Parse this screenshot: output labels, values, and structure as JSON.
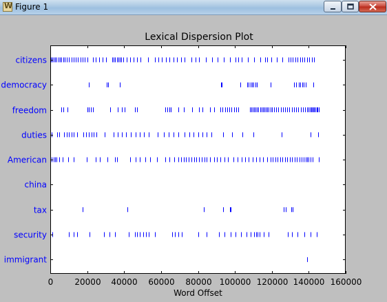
{
  "window": {
    "title": "Figure 1"
  },
  "chart_data": {
    "type": "scatter",
    "title": "Lexical Dispersion Plot",
    "xlabel": "Word Offset",
    "ylabel": "",
    "xlim": [
      0,
      160000
    ],
    "xticks": [
      "0",
      "20000",
      "40000",
      "60000",
      "80000",
      "100000",
      "120000",
      "140000",
      "160000"
    ],
    "categories": [
      "citizens",
      "democracy",
      "freedom",
      "duties",
      "American",
      "china",
      "tax",
      "security",
      "immigrant"
    ],
    "colors": {
      "marker": "#0000ff",
      "label": "#0000ff",
      "axes": "#000000",
      "background": "#ffffff"
    },
    "series": [
      {
        "name": "citizens",
        "x": [
          500,
          1200,
          1900,
          2700,
          3500,
          4300,
          5200,
          6100,
          7000,
          8000,
          9100,
          10200,
          11400,
          12600,
          13800,
          15000,
          16300,
          17500,
          18800,
          20100,
          23200,
          24800,
          26500,
          28300,
          30200,
          33600,
          34400,
          35200,
          36000,
          36800,
          37700,
          38600,
          39500,
          41400,
          43300,
          45200,
          47100,
          49000,
          53000,
          56600,
          58600,
          60600,
          62600,
          64600,
          66600,
          68700,
          70800,
          72900,
          76500,
          78600,
          80700,
          84400,
          87600,
          90800,
          94000,
          97200,
          100300,
          101700,
          103600,
          107200,
          110400,
          113600,
          116500,
          117400,
          119600,
          122700,
          125800,
          128900,
          130100,
          131300,
          132600,
          133900,
          135200,
          136500,
          137800,
          139100,
          140400,
          141700,
          143000
        ]
      },
      {
        "name": "democracy",
        "x": [
          21000,
          30400,
          31400,
          37600,
          92400,
          92900,
          103100,
          106600,
          107500,
          108400,
          109300,
          110200,
          111100,
          112000,
          119400,
          132200,
          133100,
          134600,
          135500,
          136400,
          137300,
          138200,
          142400
        ]
      },
      {
        "name": "freedom",
        "x": [
          6000,
          7000,
          9200,
          20000,
          21000,
          22000,
          23000,
          32400,
          36700,
          38700,
          40100,
          45900,
          46900,
          62400,
          63400,
          64400,
          65400,
          69500,
          72500,
          76700,
          80600,
          82600,
          86600,
          88700,
          92200,
          93400,
          94600,
          95800,
          97000,
          98200,
          99400,
          100600,
          101800,
          108000,
          108800,
          109600,
          110400,
          111200,
          112000,
          112800,
          113600,
          114400,
          115200,
          116000,
          116800,
          117600,
          118400,
          119200,
          120000,
          121200,
          122400,
          123600,
          124800,
          126000,
          127200,
          128400,
          129600,
          130800,
          132000,
          133200,
          134400,
          135600,
          136800,
          138000,
          139200,
          140000,
          140600,
          141200,
          141800,
          142400,
          143000,
          143600,
          144200,
          144800,
          145500
        ]
      },
      {
        "name": "duties",
        "x": [
          600,
          3800,
          5000,
          7600,
          8800,
          10000,
          11400,
          12800,
          14400,
          18000,
          19400,
          20800,
          22200,
          23600,
          25000,
          29400,
          34400,
          36400,
          38800,
          41200,
          43700,
          46200,
          48400,
          50800,
          53400,
          58200,
          61600,
          64000,
          66700,
          69300,
          72800,
          75200,
          77600,
          80100,
          82500,
          84800,
          87200,
          93600,
          98400,
          104200,
          110200,
          125300,
          140800,
          145200
        ]
      },
      {
        "name": "American",
        "x": [
          900,
          1700,
          2500,
          3500,
          4700,
          6800,
          9600,
          12800,
          19600,
          24500,
          27000,
          30800,
          35200,
          36000,
          43400,
          46200,
          48500,
          51300,
          54100,
          57800,
          62200,
          64600,
          67000,
          69400,
          70800,
          72200,
          73600,
          75000,
          76400,
          77800,
          79200,
          80600,
          82000,
          83400,
          84800,
          86600,
          88600,
          90400,
          92300,
          94300,
          96400,
          99200,
          101600,
          103600,
          105600,
          107500,
          109500,
          111400,
          113400,
          115400,
          117300,
          119300,
          120600,
          121900,
          123200,
          124500,
          125800,
          127100,
          128400,
          129700,
          131000,
          132300,
          133600,
          134900,
          136200,
          137300,
          138400,
          139200,
          140000,
          141000,
          142200,
          145300
        ]
      },
      {
        "name": "china",
        "x": []
      },
      {
        "name": "tax",
        "x": [
          17400,
          41800,
          83300,
          93500,
          97300,
          97800,
          126300,
          127700,
          130700,
          131200
        ]
      },
      {
        "name": "security",
        "x": [
          1100,
          10000,
          12800,
          14400,
          21100,
          29000,
          32200,
          35000,
          42500,
          45800,
          47100,
          48600,
          50200,
          51700,
          53300,
          56700,
          66000,
          67500,
          69500,
          71200,
          80100,
          84800,
          91400,
          94400,
          97900,
          100500,
          103400,
          106400,
          108400,
          110500,
          111400,
          112200,
          113200,
          115800,
          118200,
          128500,
          130900,
          133900,
          137500,
          141000,
          144500
        ]
      },
      {
        "name": "immigrant",
        "x": [
          139300
        ]
      }
    ]
  }
}
